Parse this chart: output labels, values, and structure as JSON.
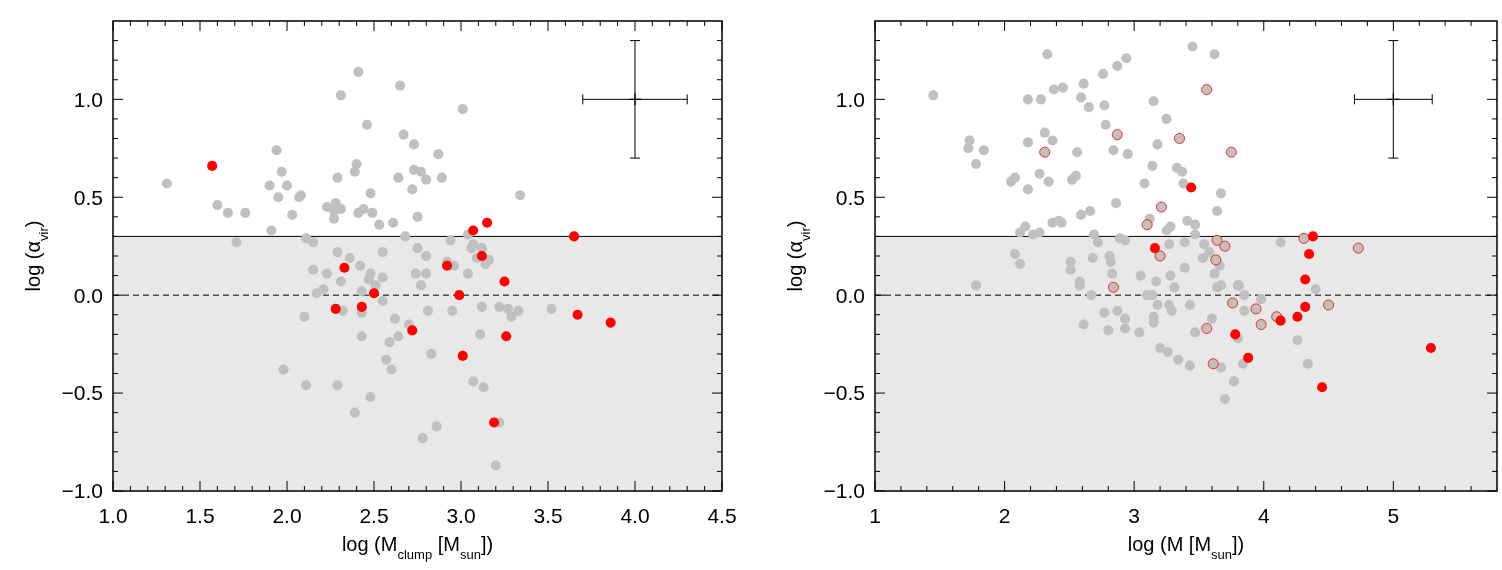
{
  "chart_data": [
    {
      "type": "scatter",
      "xlabel": "log (M$_{clump}$ [M$_{sun}$])",
      "ylabel": "log (α$_{vir}$)",
      "marker": "circle",
      "grid": false,
      "xlim": [
        1.0,
        4.5
      ],
      "ylim": [
        -1.0,
        1.4
      ],
      "xticks": [
        {
          "value": 1.0,
          "label": "1.0"
        },
        {
          "value": 1.1,
          "label": null
        },
        {
          "value": 1.2,
          "label": null
        },
        {
          "value": 1.3,
          "label": null
        },
        {
          "value": 1.4,
          "label": null
        },
        {
          "value": 1.5,
          "label": "1.5"
        },
        {
          "value": 1.6,
          "label": null
        },
        {
          "value": 1.7,
          "label": null
        },
        {
          "value": 1.8,
          "label": null
        },
        {
          "value": 1.9,
          "label": null
        },
        {
          "value": 2.0,
          "label": "2.0"
        },
        {
          "value": 2.1,
          "label": null
        },
        {
          "value": 2.2,
          "label": null
        },
        {
          "value": 2.3,
          "label": null
        },
        {
          "value": 2.4,
          "label": null
        },
        {
          "value": 2.5,
          "label": "2.5"
        },
        {
          "value": 2.6,
          "label": null
        },
        {
          "value": 2.7,
          "label": null
        },
        {
          "value": 2.8,
          "label": null
        },
        {
          "value": 2.9,
          "label": null
        },
        {
          "value": 3.0,
          "label": "3.0"
        },
        {
          "value": 3.1,
          "label": null
        },
        {
          "value": 3.2,
          "label": null
        },
        {
          "value": 3.3,
          "label": null
        },
        {
          "value": 3.4,
          "label": null
        },
        {
          "value": 3.5,
          "label": "3.5"
        },
        {
          "value": 3.6,
          "label": null
        },
        {
          "value": 3.7,
          "label": null
        },
        {
          "value": 3.8,
          "label": null
        },
        {
          "value": 3.9,
          "label": null
        },
        {
          "value": 4.0,
          "label": "4.0"
        },
        {
          "value": 4.1,
          "label": null
        },
        {
          "value": 4.2,
          "label": null
        },
        {
          "value": 4.3,
          "label": null
        },
        {
          "value": 4.4,
          "label": null
        },
        {
          "value": 4.5,
          "label": "4.5"
        }
      ],
      "yticks": [
        {
          "value": -1.0,
          "label": "−1.0"
        },
        {
          "value": -0.9,
          "label": null
        },
        {
          "value": -0.8,
          "label": null
        },
        {
          "value": -0.7,
          "label": null
        },
        {
          "value": -0.6,
          "label": null
        },
        {
          "value": -0.5,
          "label": "−0.5"
        },
        {
          "value": -0.4,
          "label": null
        },
        {
          "value": -0.3,
          "label": null
        },
        {
          "value": -0.2,
          "label": null
        },
        {
          "value": -0.1,
          "label": null
        },
        {
          "value": 0.0,
          "label": "0.0"
        },
        {
          "value": 0.1,
          "label": null
        },
        {
          "value": 0.2,
          "label": null
        },
        {
          "value": 0.3,
          "label": null
        },
        {
          "value": 0.4,
          "label": null
        },
        {
          "value": 0.5,
          "label": "0.5"
        },
        {
          "value": 0.6,
          "label": null
        },
        {
          "value": 0.7,
          "label": null
        },
        {
          "value": 0.8,
          "label": null
        },
        {
          "value": 0.9,
          "label": null
        },
        {
          "value": 1.0,
          "label": "1.0"
        },
        {
          "value": 1.1,
          "label": null
        },
        {
          "value": 1.2,
          "label": null
        },
        {
          "value": 1.3,
          "label": null
        }
      ],
      "bands": [
        {
          "axis": "y",
          "from": -1.0,
          "to": 0.3,
          "color": "#e8e8e8"
        }
      ],
      "ref_lines": [
        {
          "axis": "y",
          "value": 0.3,
          "line_style": "solid",
          "color": "#000000"
        },
        {
          "axis": "y",
          "value": 0.0,
          "line_style": "dashed",
          "color": "#000000"
        }
      ],
      "series": [
        {
          "color": "#c0c0c0",
          "x": [
            1.31,
            1.6,
            1.66,
            1.76,
            1.71,
            1.94,
            1.97,
            1.9,
            1.95,
            2.0,
            2.03,
            2.07,
            2.08,
            1.91,
            2.11,
            2.15,
            2.15,
            2.23,
            2.29,
            2.31,
            2.41,
            2.46,
            2.4,
            2.39,
            2.23,
            2.28,
            2.27,
            2.27,
            2.31,
            2.41,
            2.44,
            2.48,
            2.49,
            2.53,
            2.61,
            2.65,
            2.67,
            2.73,
            2.64,
            2.72,
            2.73,
            2.77,
            2.8,
            2.87,
            2.89,
            2.75,
            3.01,
            3.34,
            2.68,
            2.75,
            2.8,
            2.94,
            2.92,
            2.96,
            3.04,
            3.06,
            3.07,
            3.12,
            3.09,
            3.16,
            3.14,
            3.04,
            2.74,
            2.8,
            2.77,
            2.55,
            2.29,
            2.36,
            2.42,
            2.48,
            2.55,
            2.47,
            2.31,
            2.43,
            2.17,
            2.21,
            2.51,
            2.1,
            2.32,
            2.43,
            2.55,
            2.43,
            2.62,
            2.59,
            2.64,
            2.7,
            2.81,
            2.83,
            2.95,
            3.12,
            3.22,
            3.27,
            3.29,
            3.33,
            3.52,
            3.11,
            2.57,
            2.6,
            1.98,
            2.11,
            2.29,
            2.48,
            2.39,
            2.78,
            2.86,
            3.07,
            3.13,
            3.22,
            3.2
          ],
          "values": [
            0.57,
            0.46,
            0.42,
            0.42,
            0.27,
            0.74,
            0.63,
            0.56,
            0.5,
            0.56,
            0.41,
            0.5,
            0.51,
            0.33,
            0.29,
            0.27,
            0.13,
            0.11,
            0.6,
            1.02,
            1.14,
            0.87,
            0.67,
            0.63,
            0.45,
            0.47,
            0.43,
            0.39,
            0.44,
            0.42,
            0.44,
            0.52,
            0.42,
            0.36,
            0.37,
            1.07,
            0.82,
            0.77,
            0.6,
            0.54,
            0.64,
            0.63,
            0.59,
            0.72,
            0.6,
            0.4,
            0.95,
            0.51,
            0.3,
            0.24,
            0.2,
            0.28,
            0.17,
            0.15,
            0.31,
            0.24,
            0.26,
            0.24,
            0.19,
            0.18,
            0.16,
            0.11,
            0.11,
            0.11,
            0.05,
            0.22,
            0.22,
            0.19,
            0.15,
            0.11,
            0.09,
            0.08,
            0.07,
            0.02,
            0.01,
            0.03,
            0.05,
            -0.11,
            -0.08,
            -0.09,
            -0.03,
            -0.21,
            -0.12,
            -0.24,
            -0.21,
            -0.15,
            -0.08,
            -0.3,
            -0.08,
            -0.06,
            -0.06,
            -0.07,
            -0.11,
            -0.08,
            -0.07,
            -0.2,
            -0.33,
            -0.38,
            -0.38,
            -0.46,
            -0.46,
            -0.52,
            -0.6,
            -0.73,
            -0.67,
            -0.44,
            -0.47,
            -0.65,
            -0.87
          ]
        },
        {
          "color": "#ff0000",
          "x": [
            1.57,
            2.33,
            2.5,
            2.92,
            3.07,
            3.15,
            3.12,
            3.25,
            3.65,
            2.99,
            2.28,
            2.43,
            2.72,
            3.26,
            3.01,
            3.19,
            3.67,
            3.86
          ],
          "values": [
            0.66,
            0.14,
            0.01,
            0.15,
            0.33,
            0.37,
            0.2,
            0.07,
            0.3,
            0.0,
            -0.07,
            -0.06,
            -0.18,
            -0.21,
            -0.31,
            -0.65,
            -0.1,
            -0.14
          ]
        },
        {
          "color": "#000000",
          "marker": "cross",
          "x": [
            4.0
          ],
          "values": [
            1.0
          ],
          "errors": [
            0.3
          ],
          "xerrors": [
            0.3
          ]
        }
      ]
    },
    {
      "type": "scatter",
      "xlabel": "log (M [M$_{sun}$])",
      "ylabel": "log (α$_{vir}$)",
      "marker": "circle",
      "grid": false,
      "xlim": [
        1,
        5.8
      ],
      "ylim": [
        -1.0,
        1.4
      ],
      "xticks": [
        1,
        {
          "value": 1.2,
          "label": null
        },
        {
          "value": 1.4,
          "label": null
        },
        {
          "value": 1.6,
          "label": null
        },
        {
          "value": 1.8,
          "label": null
        },
        2,
        {
          "value": 2.2,
          "label": null
        },
        {
          "value": 2.4,
          "label": null
        },
        {
          "value": 2.6,
          "label": null
        },
        {
          "value": 2.8,
          "label": null
        },
        3,
        {
          "value": 3.2,
          "label": null
        },
        {
          "value": 3.4,
          "label": null
        },
        {
          "value": 3.6,
          "label": null
        },
        {
          "value": 3.8,
          "label": null
        },
        4,
        {
          "value": 4.2,
          "label": null
        },
        {
          "value": 4.4,
          "label": null
        },
        {
          "value": 4.6,
          "label": null
        },
        {
          "value": 4.8,
          "label": null
        },
        5,
        {
          "value": 5.2,
          "label": null
        },
        {
          "value": 5.4,
          "label": null
        },
        {
          "value": 5.6,
          "label": null
        }
      ],
      "yticks": [
        {
          "value": -1.0,
          "label": "−1.0"
        },
        {
          "value": -0.9,
          "label": null
        },
        {
          "value": -0.8,
          "label": null
        },
        {
          "value": -0.7,
          "label": null
        },
        {
          "value": -0.6,
          "label": null
        },
        {
          "value": -0.5,
          "label": "−0.5"
        },
        {
          "value": -0.4,
          "label": null
        },
        {
          "value": -0.3,
          "label": null
        },
        {
          "value": -0.2,
          "label": null
        },
        {
          "value": -0.1,
          "label": null
        },
        {
          "value": 0.0,
          "label": "0.0"
        },
        {
          "value": 0.1,
          "label": null
        },
        {
          "value": 0.2,
          "label": null
        },
        {
          "value": 0.3,
          "label": null
        },
        {
          "value": 0.4,
          "label": null
        },
        {
          "value": 0.5,
          "label": "0.5"
        },
        {
          "value": 0.6,
          "label": null
        },
        {
          "value": 0.7,
          "label": null
        },
        {
          "value": 0.8,
          "label": null
        },
        {
          "value": 0.9,
          "label": null
        },
        {
          "value": 1.0,
          "label": "1.0"
        },
        {
          "value": 1.1,
          "label": null
        },
        {
          "value": 1.2,
          "label": null
        },
        {
          "value": 1.3,
          "label": null
        }
      ],
      "bands": [
        {
          "axis": "y",
          "from": -1.0,
          "to": 0.3,
          "color": "#e8e8e8"
        }
      ],
      "ref_lines": [
        {
          "axis": "y",
          "value": 0.3,
          "line_style": "solid",
          "color": "#000000"
        },
        {
          "axis": "y",
          "value": 0.0,
          "line_style": "dashed",
          "color": "#000000"
        }
      ],
      "series": [
        {
          "color": "#c0c0c0",
          "x": [
            1.45,
            1.73,
            1.72,
            1.78,
            1.84,
            2.05,
            2.08,
            2.18,
            2.16,
            2.12,
            2.08,
            2.12,
            1.78,
            2.18,
            2.28,
            2.33,
            2.38,
            2.45,
            2.18,
            2.31,
            2.37,
            2.27,
            2.34,
            2.27,
            2.22,
            2.37,
            2.42,
            2.44,
            2.52,
            2.55,
            2.56,
            2.59,
            2.66,
            2.59,
            2.61,
            2.65,
            2.76,
            2.87,
            2.94,
            2.77,
            2.78,
            2.84,
            2.95,
            2.86,
            2.69,
            2.72,
            2.51,
            2.51,
            2.68,
            2.81,
            2.82,
            2.83,
            2.89,
            2.93,
            3.15,
            3.25,
            3.18,
            3.14,
            3.08,
            3.12,
            3.33,
            3.37,
            3.38,
            3.45,
            3.62,
            3.67,
            3.64,
            3.41,
            3.47,
            3.28,
            3.25,
            3.47,
            3.39,
            3.27,
            3.54,
            3.53,
            3.58,
            3.66,
            3.62,
            3.39,
            3.28,
            3.17,
            3.05,
            3.31,
            3.64,
            3.67,
            3.8,
            4.13,
            4.4,
            2.58,
            2.58,
            2.67,
            2.77,
            2.87,
            2.93,
            2.93,
            2.8,
            2.61,
            3.04,
            3.1,
            3.14,
            3.18,
            3.15,
            3.15,
            3.27,
            3.29,
            3.43,
            3.2,
            3.26,
            3.34,
            3.43,
            3.47,
            3.6,
            3.67,
            3.77,
            3.7,
            3.84,
            3.8,
            3.85,
            3.98,
            3.85,
            3.81,
            4.26,
            4.34
          ],
          "values": [
            1.02,
            0.79,
            0.75,
            0.67,
            0.74,
            0.58,
            0.6,
            0.54,
            0.35,
            0.32,
            0.21,
            0.16,
            0.05,
            1.0,
            1.0,
            1.23,
            1.05,
            1.06,
            0.78,
            0.83,
            0.79,
            0.62,
            0.58,
            0.32,
            0.31,
            0.37,
            0.38,
            0.37,
            0.59,
            0.61,
            0.73,
            0.41,
            0.43,
            1.01,
            1.08,
            0.96,
            1.13,
            1.17,
            1.21,
            0.97,
            0.87,
            0.74,
            0.72,
            0.47,
            0.31,
            0.27,
            0.17,
            0.13,
            0.19,
            0.2,
            0.17,
            0.11,
            0.29,
            0.28,
            0.99,
            0.9,
            0.77,
            0.66,
            0.57,
            0.39,
            0.65,
            0.63,
            0.57,
            1.27,
            1.23,
            0.52,
            0.43,
            0.38,
            0.36,
            0.35,
            0.33,
            0.31,
            0.27,
            0.26,
            0.26,
            0.19,
            0.22,
            0.15,
            0.11,
            0.14,
            0.1,
            0.07,
            0.1,
            0.04,
            0.04,
            0.05,
            0.05,
            0.27,
            0.03,
            0.07,
            0.05,
            0.0,
            -0.09,
            -0.08,
            -0.12,
            -0.17,
            -0.18,
            -0.15,
            -0.19,
            0.0,
            0.0,
            -0.05,
            -0.11,
            -0.14,
            -0.05,
            -0.08,
            -0.05,
            -0.27,
            -0.29,
            -0.33,
            -0.36,
            -0.19,
            -0.12,
            -0.37,
            -0.44,
            -0.53,
            -0.35,
            -0.22,
            -0.08,
            -0.02,
            0.0,
            0.05,
            -0.23,
            -0.35
          ]
        },
        {
          "color": "#ff0000",
          "marker": "circle",
          "x": [
            2.31,
            2.87,
            3.56,
            3.35,
            3.75,
            3.21,
            3.1,
            3.2,
            3.64,
            3.7,
            3.63,
            4.31,
            4.73,
            2.84,
            3.76,
            3.94,
            3.98,
            4.1,
            3.56,
            3.61,
            4.5
          ],
          "values": [
            0.73,
            0.82,
            1.05,
            0.8,
            0.73,
            0.45,
            0.36,
            0.2,
            0.28,
            0.25,
            0.18,
            0.29,
            0.24,
            0.04,
            -0.04,
            -0.07,
            -0.15,
            -0.11,
            -0.17,
            -0.35,
            -0.05
          ]
        },
        {
          "color": "#ff0000",
          "x": [
            3.44,
            3.16,
            4.38,
            4.35,
            4.32,
            4.32,
            4.26,
            4.13,
            3.78,
            3.88,
            4.45,
            5.29
          ],
          "values": [
            0.55,
            0.24,
            0.3,
            0.21,
            0.08,
            -0.06,
            -0.11,
            -0.13,
            -0.2,
            -0.32,
            -0.47,
            -0.27
          ]
        },
        {
          "color": "#000000",
          "marker": "cross",
          "x": [
            5.0
          ],
          "values": [
            1.0
          ],
          "errors": [
            0.3
          ],
          "xerrors": [
            0.3
          ]
        }
      ]
    }
  ]
}
